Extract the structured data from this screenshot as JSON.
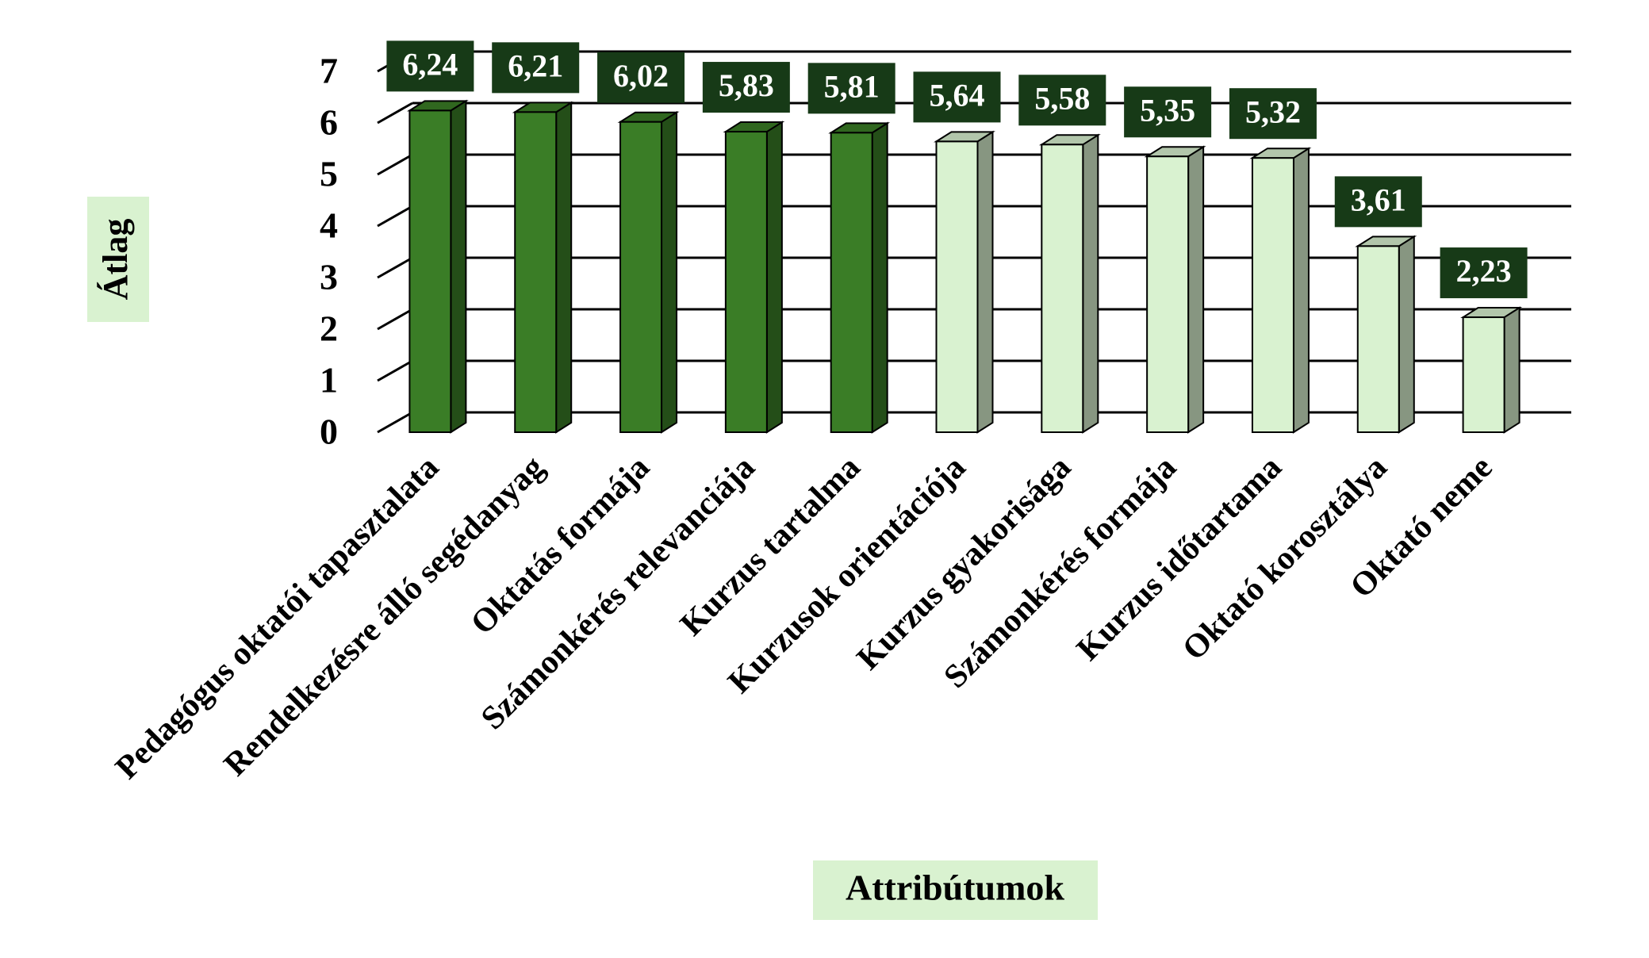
{
  "chart_data": {
    "type": "bar3d",
    "x_label": "Attribútumok",
    "y_label": "Átlag",
    "categories": [
      "Pedagógus oktatói tapasztalata",
      "Rendelkezésre álló segédanyag",
      "Oktatás formája",
      "Számonkérés relevanciája",
      "Kurzus tartalma",
      "Kurzusok orientációja",
      "Kurzus gyakorisága",
      "Számonkérés formája",
      "Kurzus időtartama",
      "Oktató korosztálya",
      "Oktató neme"
    ],
    "values": [
      6.24,
      6.21,
      6.02,
      5.83,
      5.81,
      5.64,
      5.58,
      5.35,
      5.32,
      3.61,
      2.23
    ],
    "value_labels": [
      "6,24",
      "6,21",
      "6,02",
      "5,83",
      "5,81",
      "5,64",
      "5,58",
      "5,35",
      "5,32",
      "3,61",
      "2,23"
    ],
    "colors": [
      "#3a7d26",
      "#3a7d26",
      "#3a7d26",
      "#3a7d26",
      "#3a7d26",
      "#d9f2d0",
      "#d9f2d0",
      "#d9f2d0",
      "#d9f2d0",
      "#d9f2d0",
      "#d9f2d0"
    ],
    "ylim": [
      0,
      7
    ],
    "yticks": [
      0,
      1,
      2,
      3,
      4,
      5,
      6,
      7
    ],
    "grid": true
  }
}
